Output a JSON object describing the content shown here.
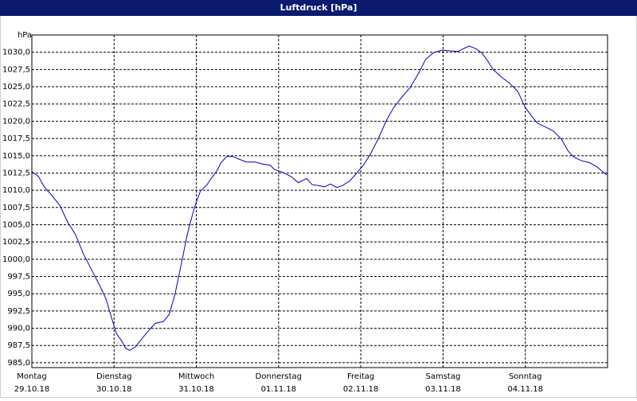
{
  "chart_data": {
    "type": "line",
    "title": "Luftdruck [hPa]",
    "y_unit": "hPa",
    "xlim": [
      0,
      7
    ],
    "ylim": [
      984.3,
      1032.5
    ],
    "grid": true,
    "xticks": [
      {
        "value": 0,
        "label": "Montag",
        "sublabel": "29.10.18"
      },
      {
        "value": 1,
        "label": "Dienstag",
        "sublabel": "30.10.18"
      },
      {
        "value": 2,
        "label": "Mittwoch",
        "sublabel": "31.10.18"
      },
      {
        "value": 3,
        "label": "Donnerstag",
        "sublabel": "01.11.18"
      },
      {
        "value": 4,
        "label": "Freitag",
        "sublabel": "02.11.18"
      },
      {
        "value": 5,
        "label": "Samstag",
        "sublabel": "03.11.18"
      },
      {
        "value": 6,
        "label": "Sonntag",
        "sublabel": "04.11.18"
      }
    ],
    "yticks": [
      {
        "value": 985,
        "label": "985,0"
      },
      {
        "value": 987.5,
        "label": "987,5"
      },
      {
        "value": 990,
        "label": "990,0"
      },
      {
        "value": 992.5,
        "label": "992,5"
      },
      {
        "value": 995,
        "label": "995,0"
      },
      {
        "value": 997.5,
        "label": "997,5"
      },
      {
        "value": 1000,
        "label": "1000,0"
      },
      {
        "value": 1002.5,
        "label": "1002,5"
      },
      {
        "value": 1005,
        "label": "1005,0"
      },
      {
        "value": 1007.5,
        "label": "1007,5"
      },
      {
        "value": 1010,
        "label": "1010,0"
      },
      {
        "value": 1012.5,
        "label": "1012,5"
      },
      {
        "value": 1015,
        "label": "1015,0"
      },
      {
        "value": 1017.5,
        "label": "1017,5"
      },
      {
        "value": 1020,
        "label": "1020,0"
      },
      {
        "value": 1022.5,
        "label": "1022,5"
      },
      {
        "value": 1025,
        "label": "1025,0"
      },
      {
        "value": 1027.5,
        "label": "1027,5"
      },
      {
        "value": 1030,
        "label": "1030,0"
      }
    ],
    "x": [
      0,
      0.08,
      0.15,
      0.24,
      0.34,
      0.44,
      0.53,
      0.63,
      0.73,
      0.82,
      0.9,
      0.97,
      1.03,
      1.09,
      1.14,
      1.19,
      1.26,
      1.32,
      1.4,
      1.5,
      1.6,
      1.67,
      1.74,
      1.82,
      1.89,
      1.94,
      1.98,
      2.05,
      2.13,
      2.18,
      2.25,
      2.3,
      2.37,
      2.44,
      2.52,
      2.61,
      2.71,
      2.81,
      2.9,
      2.95,
      3.05,
      3.15,
      3.24,
      3.34,
      3.41,
      3.48,
      3.56,
      3.63,
      3.71,
      3.78,
      3.87,
      3.95,
      4.03,
      4.11,
      4.21,
      4.31,
      4.4,
      4.5,
      4.6,
      4.7,
      4.79,
      4.89,
      4.99,
      5.08,
      5.18,
      5.26,
      5.32,
      5.4,
      5.47,
      5.54,
      5.61,
      5.71,
      5.81,
      5.91,
      6.0,
      6.08,
      6.15,
      6.24,
      6.34,
      6.44,
      6.52,
      6.59,
      6.68,
      6.78,
      6.87,
      6.94,
      6.99
    ],
    "series": [
      {
        "color": "#0000c0",
        "values": [
          1012.7,
          1012.0,
          1010.5,
          1009.3,
          1007.8,
          1005.3,
          1003.6,
          1000.7,
          998.4,
          996.3,
          994.3,
          991.5,
          989.2,
          988.2,
          987.1,
          986.8,
          987.3,
          988.2,
          989.4,
          990.7,
          991.0,
          992.0,
          994.9,
          999.5,
          1003.6,
          1005.9,
          1007.6,
          1009.9,
          1010.8,
          1011.7,
          1012.8,
          1014.0,
          1014.9,
          1014.9,
          1014.5,
          1014.1,
          1014.1,
          1013.8,
          1013.6,
          1013.0,
          1012.6,
          1012.0,
          1011.1,
          1011.7,
          1010.8,
          1010.7,
          1010.5,
          1010.9,
          1010.4,
          1010.7,
          1011.4,
          1012.5,
          1013.6,
          1015.1,
          1017.4,
          1020.1,
          1022.0,
          1023.5,
          1024.9,
          1026.9,
          1029.0,
          1030.0,
          1030.3,
          1030.2,
          1030.1,
          1030.6,
          1030.9,
          1030.5,
          1029.9,
          1028.8,
          1027.5,
          1026.4,
          1025.5,
          1024.3,
          1022.0,
          1020.7,
          1019.7,
          1019.2,
          1018.6,
          1017.4,
          1015.7,
          1014.8,
          1014.3,
          1014.0,
          1013.4,
          1012.7,
          1012.2
        ]
      }
    ]
  }
}
